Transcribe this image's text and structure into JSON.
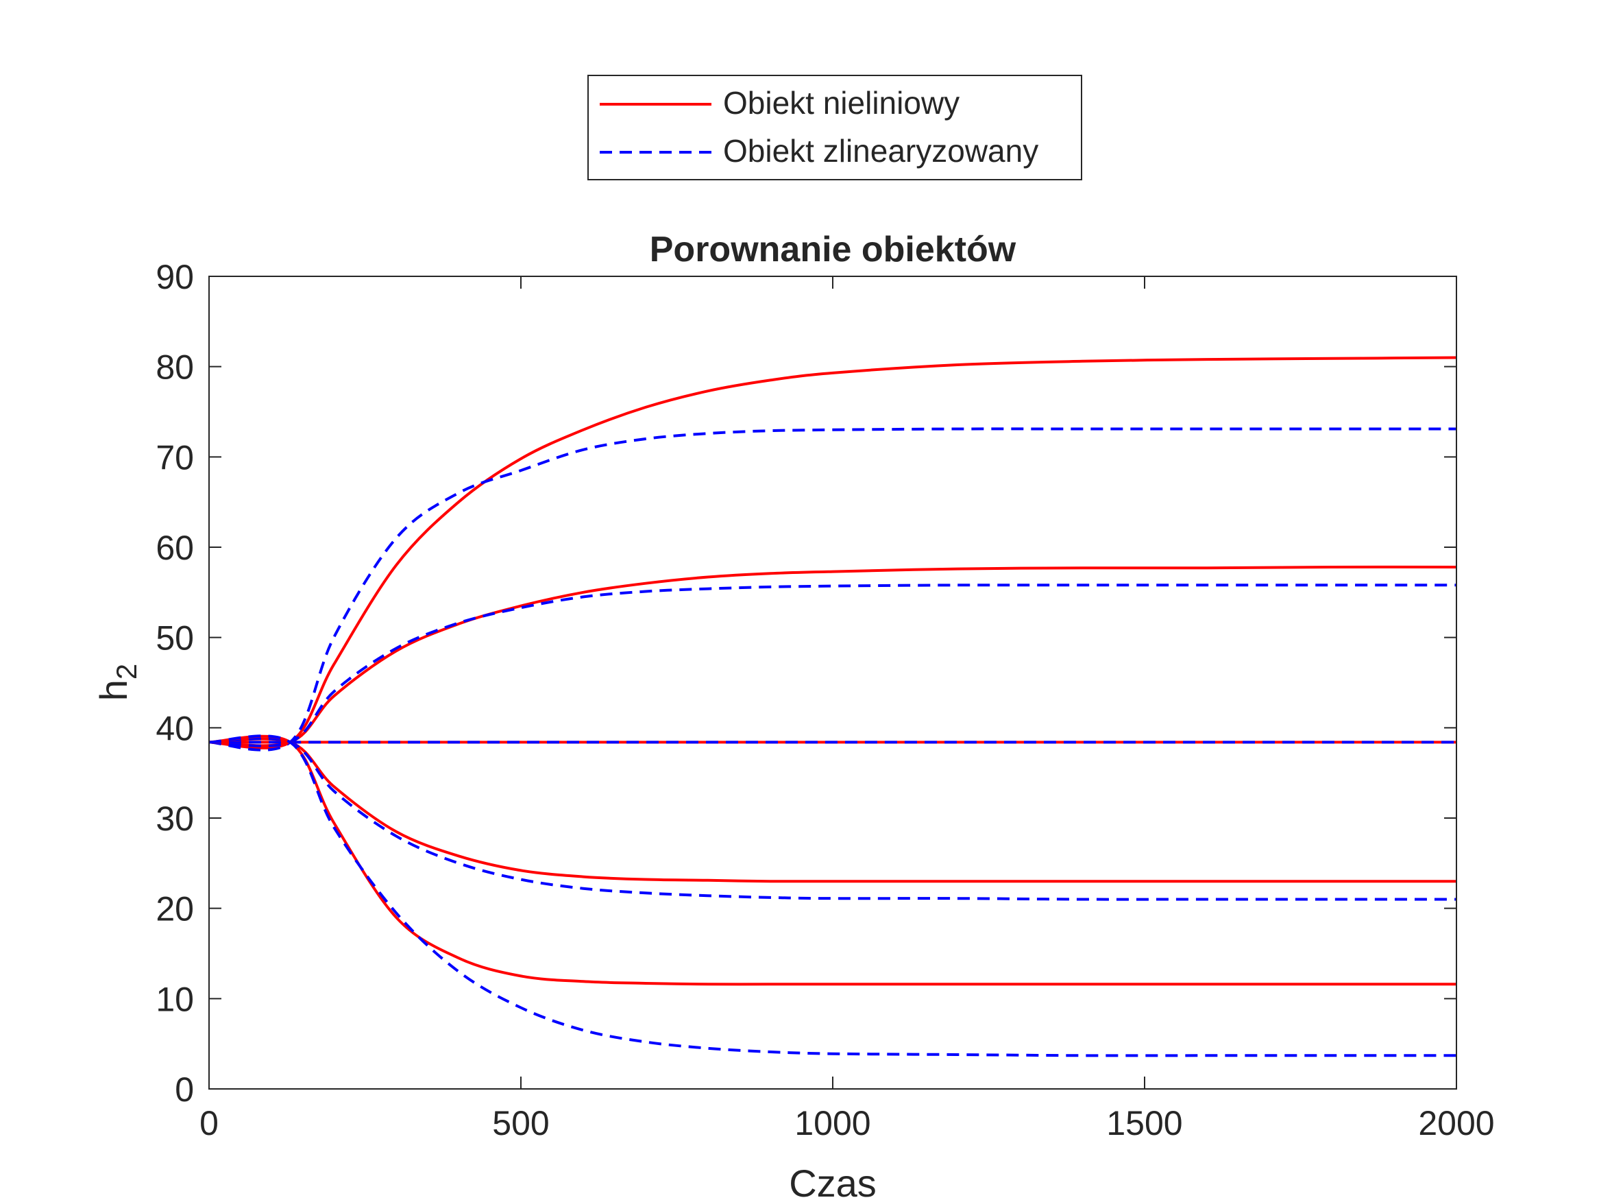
{
  "chart_data": {
    "type": "line",
    "title": "Porownanie obiektów",
    "xlabel": "Czas",
    "ylabel": "h",
    "ylabel_subscript": "2",
    "xlim": [
      0,
      2000
    ],
    "ylim": [
      0,
      90
    ],
    "xticks": [
      0,
      500,
      1000,
      1500,
      2000
    ],
    "yticks": [
      0,
      10,
      20,
      30,
      40,
      50,
      60,
      70,
      80,
      90
    ],
    "grid": false,
    "legend_position": "top-center",
    "colors": {
      "nonlinear": "#ff0000",
      "linear": "#0000ff",
      "axes": "#262626"
    },
    "legend": [
      {
        "label": "Obiekt nieliniowy",
        "style": "solid",
        "color": "#ff0000"
      },
      {
        "label": "Obiekt zlinearyzowany",
        "style": "dashed",
        "color": "#0000ff"
      }
    ],
    "x": [
      0,
      130,
      200,
      300,
      400,
      500,
      600,
      700,
      800,
      900,
      1000,
      1200,
      1400,
      1600,
      1800,
      2000
    ],
    "series": [
      {
        "group": "nonlinear",
        "style": "solid",
        "color": "#ff0000",
        "values": [
          38.4,
          38.4,
          47.0,
          58.0,
          65.0,
          69.8,
          73.0,
          75.5,
          77.3,
          78.5,
          79.3,
          80.2,
          80.6,
          80.8,
          80.9,
          81.0
        ]
      },
      {
        "group": "linear",
        "style": "dashed",
        "color": "#0000ff",
        "values": [
          38.4,
          38.4,
          50.0,
          61.0,
          66.0,
          68.5,
          70.8,
          72.0,
          72.6,
          72.9,
          73.0,
          73.1,
          73.1,
          73.1,
          73.1,
          73.1
        ]
      },
      {
        "group": "nonlinear",
        "style": "solid",
        "color": "#ff0000",
        "values": [
          38.4,
          38.4,
          43.5,
          48.5,
          51.5,
          53.5,
          55.0,
          56.0,
          56.7,
          57.1,
          57.3,
          57.6,
          57.7,
          57.7,
          57.8,
          57.8
        ]
      },
      {
        "group": "linear",
        "style": "dashed",
        "color": "#0000ff",
        "values": [
          38.4,
          38.4,
          44.0,
          48.8,
          51.6,
          53.3,
          54.5,
          55.1,
          55.4,
          55.6,
          55.7,
          55.8,
          55.8,
          55.8,
          55.8,
          55.8
        ]
      },
      {
        "group": "nonlinear",
        "style": "solid",
        "color": "#ff0000",
        "values": [
          38.4,
          38.4,
          38.4,
          38.4,
          38.4,
          38.4,
          38.4,
          38.4,
          38.4,
          38.4,
          38.4,
          38.4,
          38.4,
          38.4,
          38.4,
          38.4
        ]
      },
      {
        "group": "linear",
        "style": "dashed",
        "color": "#0000ff",
        "values": [
          38.4,
          38.4,
          38.4,
          38.4,
          38.4,
          38.4,
          38.4,
          38.4,
          38.4,
          38.4,
          38.4,
          38.4,
          38.4,
          38.4,
          38.4,
          38.4
        ]
      },
      {
        "group": "nonlinear",
        "style": "solid",
        "color": "#ff0000",
        "values": [
          38.4,
          38.4,
          33.5,
          28.5,
          25.8,
          24.2,
          23.5,
          23.2,
          23.1,
          23.0,
          23.0,
          23.0,
          23.0,
          23.0,
          23.0,
          23.0
        ]
      },
      {
        "group": "linear",
        "style": "dashed",
        "color": "#0000ff",
        "values": [
          38.4,
          38.4,
          33.0,
          28.0,
          25.0,
          23.2,
          22.2,
          21.7,
          21.4,
          21.2,
          21.1,
          21.1,
          21.0,
          21.0,
          21.0,
          21.0
        ]
      },
      {
        "group": "nonlinear",
        "style": "solid",
        "color": "#ff0000",
        "values": [
          38.4,
          38.4,
          29.5,
          19.0,
          14.5,
          12.5,
          11.9,
          11.7,
          11.6,
          11.6,
          11.6,
          11.6,
          11.6,
          11.6,
          11.6,
          11.6
        ]
      },
      {
        "group": "linear",
        "style": "dashed",
        "color": "#0000ff",
        "values": [
          38.4,
          38.4,
          29.0,
          19.5,
          13.0,
          9.0,
          6.5,
          5.2,
          4.5,
          4.1,
          3.9,
          3.8,
          3.7,
          3.7,
          3.7,
          3.7
        ]
      }
    ]
  }
}
